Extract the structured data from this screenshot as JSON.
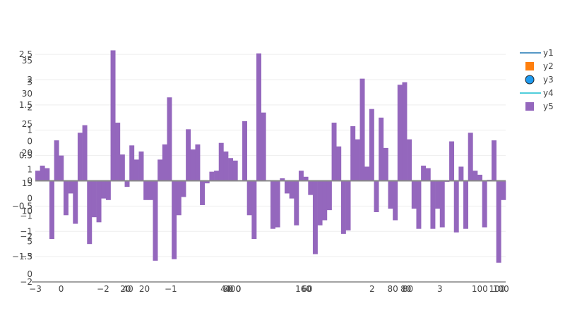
{
  "chart_data": {
    "type": "bar",
    "bar_color": "#9467bd",
    "grid": true,
    "legend_position": "top-right",
    "legend": [
      {
        "name": "y1",
        "symbol": "line",
        "color": "#1f77b4"
      },
      {
        "name": "y2",
        "symbol": "square",
        "color": "#ff7f0e"
      },
      {
        "name": "y3",
        "symbol": "circle",
        "color": "#1f9bf0"
      },
      {
        "name": "y4",
        "symbol": "line",
        "color": "#17becf"
      },
      {
        "name": "y5",
        "symbol": "square",
        "color": "#9467bd"
      }
    ],
    "ylim": [
      -2.0,
      2.6
    ],
    "y_ticks": [
      {
        "value": 2.5,
        "label": "2.5"
      },
      {
        "value": 2.0,
        "label": "2"
      },
      {
        "value": 1.5,
        "label": "1.5"
      },
      {
        "value": 1.0,
        "label": "1"
      },
      {
        "value": 0.5,
        "label": "0.5"
      },
      {
        "value": 0.0,
        "label": "0"
      },
      {
        "value": -0.5,
        "label": "−0.5"
      },
      {
        "value": -1.0,
        "label": "−1"
      },
      {
        "value": -1.5,
        "label": "−1.5"
      },
      {
        "value": -2.0,
        "label": "−2"
      }
    ],
    "y_overlay_ticks": [
      {
        "value": 2.38,
        "label": "35"
      },
      {
        "value": 1.95,
        "label": "3"
      },
      {
        "value": 1.72,
        "label": "30"
      },
      {
        "value": 1.45,
        "label": "2"
      },
      {
        "value": 1.12,
        "label": "25"
      },
      {
        "value": 0.78,
        "label": "0"
      },
      {
        "value": 0.55,
        "label": "20"
      },
      {
        "value": 0.22,
        "label": "1"
      },
      {
        "value": -0.05,
        "label": "15"
      },
      {
        "value": -0.35,
        "label": "0"
      },
      {
        "value": -0.6,
        "label": "10"
      },
      {
        "value": -0.7,
        "label": "−1"
      },
      {
        "value": -1.1,
        "label": "−2"
      },
      {
        "value": -1.2,
        "label": "5"
      },
      {
        "value": -1.5,
        "label": "−3"
      },
      {
        "value": -1.85,
        "label": "0"
      }
    ],
    "x_ticks": [
      {
        "pos": 0.0,
        "label": "−3"
      },
      {
        "pos": 0.055,
        "label": "0"
      },
      {
        "pos": 0.144,
        "label": "−2"
      },
      {
        "pos": 0.192,
        "label": "20"
      },
      {
        "pos": 0.197,
        "label": "40"
      },
      {
        "pos": 0.232,
        "label": "20"
      },
      {
        "pos": 0.288,
        "label": "−1"
      },
      {
        "pos": 0.405,
        "label": "40"
      },
      {
        "pos": 0.41,
        "label": "60"
      },
      {
        "pos": 0.42,
        "label": "400"
      },
      {
        "pos": 0.432,
        "label": "0"
      },
      {
        "pos": 0.57,
        "label": "160"
      },
      {
        "pos": 0.578,
        "label": "60"
      },
      {
        "pos": 0.716,
        "label": "2"
      },
      {
        "pos": 0.76,
        "label": "80"
      },
      {
        "pos": 0.788,
        "label": "80"
      },
      {
        "pos": 0.792,
        "label": "80"
      },
      {
        "pos": 0.86,
        "label": "3"
      },
      {
        "pos": 0.945,
        "label": "100"
      },
      {
        "pos": 0.982,
        "label": "100"
      },
      {
        "pos": 0.99,
        "label": "100"
      }
    ],
    "values": [
      0.2,
      0.3,
      0.25,
      -1.15,
      0.8,
      0.5,
      -0.68,
      -0.25,
      -0.85,
      0.95,
      1.1,
      -1.25,
      -0.72,
      -0.82,
      -0.35,
      -0.38,
      2.58,
      1.15,
      0.52,
      -0.12,
      0.7,
      0.42,
      0.58,
      -0.38,
      -0.38,
      -1.58,
      0.42,
      0.72,
      1.65,
      -1.55,
      -0.68,
      -0.32,
      1.02,
      0.62,
      0.72,
      -0.48,
      -0.05,
      0.18,
      0.2,
      0.75,
      0.58,
      0.45,
      0.4,
      0.0,
      1.18,
      -0.68,
      -1.15,
      2.52,
      1.35,
      0.0,
      -0.95,
      -0.92,
      0.05,
      -0.25,
      -0.35,
      -0.88,
      0.2,
      0.08,
      -0.28,
      -1.45,
      -0.88,
      -0.78,
      -0.58,
      1.15,
      0.68,
      -1.05,
      -0.98,
      1.08,
      0.82,
      2.02,
      0.28,
      1.42,
      -0.62,
      1.25,
      0.65,
      -0.55,
      -0.78,
      1.9,
      1.95,
      0.82,
      -0.55,
      -0.95,
      0.3,
      0.25,
      -0.95,
      -0.55,
      -0.92,
      -0.02,
      0.78,
      -1.02,
      0.28,
      -0.95,
      0.95,
      0.2,
      0.12,
      -0.92,
      0.02,
      0.8,
      -1.62,
      -0.38
    ]
  }
}
